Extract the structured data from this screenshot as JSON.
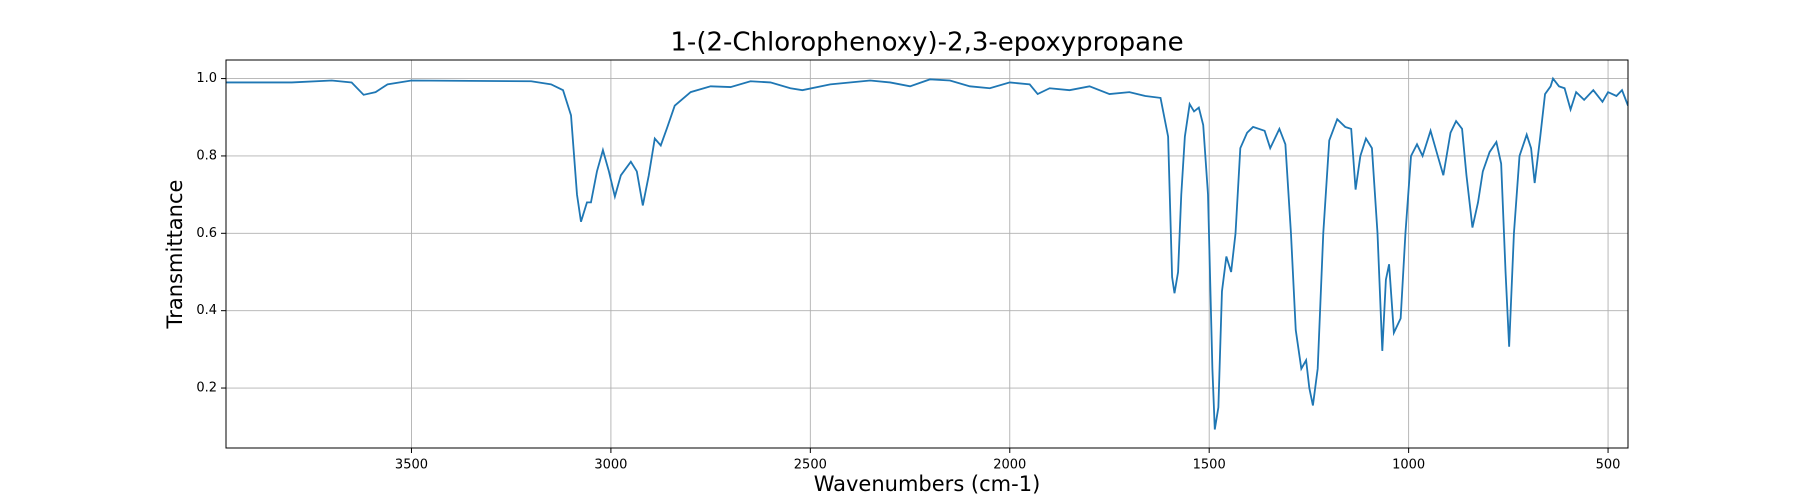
{
  "chart_data": {
    "type": "line",
    "title": "1-(2-Chlorophenoxy)-2,3-epoxypropane",
    "x_label": "Wavenumbers (cm-1)",
    "y_label": "Transmittance",
    "color": "#1f77b4",
    "grid": true,
    "xlim": [
      3965,
      450
    ],
    "ylim": [
      0.045,
      1.048
    ],
    "xticks": [
      3500,
      3000,
      2500,
      2000,
      1500,
      1000,
      500
    ],
    "yticks": [
      0.2,
      0.4,
      0.6,
      0.8,
      {
        "value": 1,
        "label": "1.0"
      }
    ],
    "x": [
      3965,
      3800,
      3700,
      3650,
      3620,
      3590,
      3560,
      3500,
      3200,
      3150,
      3120,
      3100,
      3085,
      3075,
      3060,
      3050,
      3035,
      3020,
      3005,
      2990,
      2975,
      2950,
      2935,
      2920,
      2905,
      2890,
      2875,
      2860,
      2840,
      2800,
      2750,
      2700,
      2650,
      2600,
      2550,
      2520,
      2450,
      2350,
      2300,
      2250,
      2200,
      2150,
      2100,
      2050,
      2000,
      1950,
      1930,
      1900,
      1850,
      1800,
      1750,
      1700,
      1660,
      1622,
      1603,
      1593,
      1587,
      1578,
      1570,
      1561,
      1549,
      1538,
      1526,
      1515,
      1503,
      1492,
      1486,
      1477,
      1468,
      1457,
      1445,
      1434,
      1422,
      1405,
      1390,
      1361,
      1347,
      1324,
      1309,
      1295,
      1283,
      1269,
      1257,
      1249,
      1240,
      1228,
      1214,
      1199,
      1179,
      1159,
      1144,
      1133,
      1121,
      1107,
      1092,
      1078,
      1066,
      1057,
      1049,
      1037,
      1020,
      1008,
      994,
      979,
      965,
      945,
      927,
      913,
      895,
      881,
      866,
      855,
      840,
      826,
      814,
      797,
      780,
      768,
      757,
      748,
      736,
      722,
      704,
      693,
      684,
      670,
      658,
      644,
      638,
      623,
      609,
      594,
      580,
      560,
      537,
      514,
      500,
      479,
      465,
      450
    ],
    "values": [
      0.99,
      0.99,
      0.995,
      0.99,
      0.958,
      0.965,
      0.985,
      0.995,
      0.993,
      0.985,
      0.97,
      0.905,
      0.7,
      0.63,
      0.68,
      0.68,
      0.76,
      0.815,
      0.76,
      0.695,
      0.75,
      0.785,
      0.76,
      0.672,
      0.75,
      0.845,
      0.827,
      0.87,
      0.93,
      0.965,
      0.98,
      0.978,
      0.993,
      0.99,
      0.975,
      0.97,
      0.985,
      0.995,
      0.99,
      0.98,
      0.998,
      0.995,
      0.98,
      0.975,
      0.99,
      0.985,
      0.96,
      0.975,
      0.97,
      0.98,
      0.96,
      0.965,
      0.955,
      0.95,
      0.85,
      0.487,
      0.445,
      0.5,
      0.7,
      0.85,
      0.934,
      0.915,
      0.925,
      0.88,
      0.7,
      0.25,
      0.093,
      0.15,
      0.45,
      0.54,
      0.5,
      0.6,
      0.82,
      0.86,
      0.875,
      0.865,
      0.82,
      0.87,
      0.83,
      0.6,
      0.35,
      0.25,
      0.272,
      0.2,
      0.155,
      0.25,
      0.6,
      0.84,
      0.895,
      0.875,
      0.87,
      0.713,
      0.8,
      0.845,
      0.82,
      0.6,
      0.296,
      0.48,
      0.52,
      0.343,
      0.38,
      0.6,
      0.8,
      0.83,
      0.8,
      0.865,
      0.8,
      0.75,
      0.86,
      0.89,
      0.87,
      0.75,
      0.615,
      0.68,
      0.76,
      0.81,
      0.836,
      0.78,
      0.5,
      0.307,
      0.6,
      0.8,
      0.855,
      0.82,
      0.73,
      0.85,
      0.96,
      0.98,
      1.0,
      0.98,
      0.975,
      0.92,
      0.965,
      0.945,
      0.97,
      0.94,
      0.965,
      0.955,
      0.97,
      0.93
    ]
  }
}
